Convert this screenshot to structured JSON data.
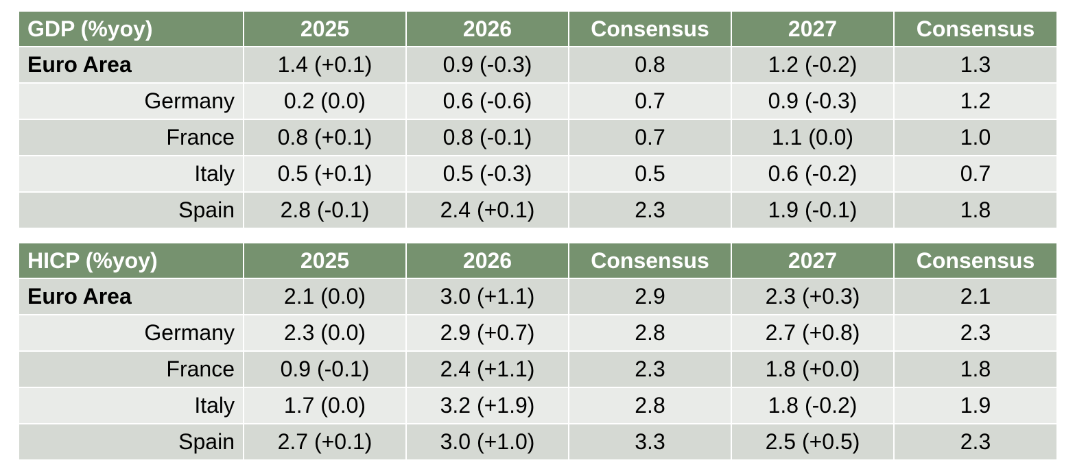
{
  "colors": {
    "header_bg": "#76926f",
    "header_text": "#ffffff",
    "row_dark": "#d5d9d3",
    "row_light": "#e9ebe8"
  },
  "tables": [
    {
      "headers": [
        "GDP (%yoy)",
        "2025",
        "2026",
        "Consensus",
        "2027",
        "Consensus"
      ],
      "rows": [
        {
          "label": "Euro Area",
          "cells": [
            "1.4 (+0.1)",
            "0.9 (-0.3)",
            "0.8",
            "1.2 (-0.2)",
            "1.3"
          ]
        },
        {
          "label": "Germany",
          "cells": [
            "0.2 (0.0)",
            "0.6 (-0.6)",
            "0.7",
            "0.9 (-0.3)",
            "1.2"
          ]
        },
        {
          "label": "France",
          "cells": [
            "0.8 (+0.1)",
            "0.8 (-0.1)",
            "0.7",
            "1.1 (0.0)",
            "1.0"
          ]
        },
        {
          "label": "Italy",
          "cells": [
            "0.5 (+0.1)",
            "0.5 (-0.3)",
            "0.5",
            "0.6 (-0.2)",
            "0.7"
          ]
        },
        {
          "label": "Spain",
          "cells": [
            "2.8 (-0.1)",
            "2.4 (+0.1)",
            "2.3",
            "1.9 (-0.1)",
            "1.8"
          ]
        }
      ]
    },
    {
      "headers": [
        "HICP (%yoy)",
        "2025",
        "2026",
        "Consensus",
        "2027",
        "Consensus"
      ],
      "rows": [
        {
          "label": "Euro Area",
          "cells": [
            "2.1 (0.0)",
            "3.0 (+1.1)",
            "2.9",
            "2.3 (+0.3)",
            "2.1"
          ]
        },
        {
          "label": "Germany",
          "cells": [
            "2.3 (0.0)",
            "2.9 (+0.7)",
            "2.8",
            "2.7 (+0.8)",
            "2.3"
          ]
        },
        {
          "label": "France",
          "cells": [
            "0.9 (-0.1)",
            "2.4 (+1.1)",
            "2.3",
            "1.8 (+0.0)",
            "1.8"
          ]
        },
        {
          "label": "Italy",
          "cells": [
            "1.7 (0.0)",
            "3.2 (+1.9)",
            "2.8",
            "1.8 (-0.2)",
            "1.9"
          ]
        },
        {
          "label": "Spain",
          "cells": [
            "2.7 (+0.1)",
            "3.0 (+1.0)",
            "3.3",
            "2.5 (+0.5)",
            "2.3"
          ]
        }
      ]
    }
  ]
}
